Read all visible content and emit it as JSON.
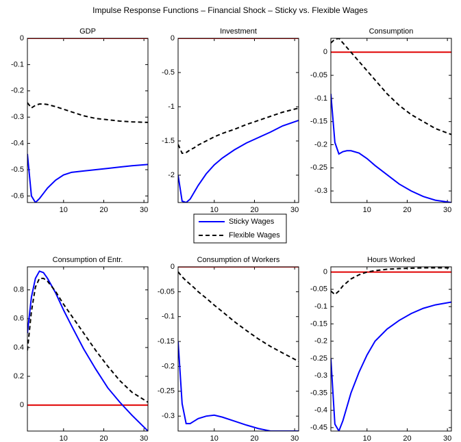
{
  "title": "Impulse Response Functions –  Financial Shock – Sticky vs. Flexible Wages",
  "chart_data": [
    {
      "type": "line",
      "title": "GDP",
      "x": [
        1,
        2,
        3,
        4,
        5,
        6,
        8,
        10,
        12,
        15,
        18,
        21,
        24,
        27,
        31
      ],
      "xlim": [
        1,
        31
      ],
      "xticks": [
        10,
        20,
        30
      ],
      "ylim": [
        -0.625,
        0
      ],
      "yticks": [
        -0.6,
        -0.5,
        -0.4,
        -0.3,
        -0.2,
        -0.1,
        0
      ],
      "hline": {
        "value": 0,
        "color": "#e00000"
      },
      "series": [
        {
          "name": "Sticky Wages",
          "color": "#0000ff",
          "linestyle": "solid",
          "values": [
            -0.44,
            -0.6,
            -0.625,
            -0.61,
            -0.59,
            -0.57,
            -0.54,
            -0.52,
            -0.51,
            -0.505,
            -0.5,
            -0.495,
            -0.49,
            -0.485,
            -0.48
          ]
        },
        {
          "name": "Flexible Wages",
          "color": "#000000",
          "linestyle": "dashed",
          "values": [
            -0.245,
            -0.265,
            -0.255,
            -0.25,
            -0.25,
            -0.252,
            -0.26,
            -0.27,
            -0.28,
            -0.295,
            -0.305,
            -0.31,
            -0.315,
            -0.318,
            -0.32
          ]
        }
      ]
    },
    {
      "type": "line",
      "title": "Investment",
      "x": [
        1,
        2,
        3,
        4,
        5,
        6,
        8,
        10,
        12,
        15,
        18,
        21,
        24,
        27,
        31
      ],
      "xlim": [
        1,
        31
      ],
      "xticks": [
        10,
        20,
        30
      ],
      "ylim": [
        -2.4,
        0
      ],
      "yticks": [
        -2,
        -1.5,
        -1,
        -0.5,
        0
      ],
      "hline": {
        "value": 0,
        "color": "#e00000"
      },
      "series": [
        {
          "name": "Sticky Wages",
          "color": "#0000ff",
          "linestyle": "solid",
          "values": [
            -2.0,
            -2.38,
            -2.4,
            -2.35,
            -2.25,
            -2.15,
            -1.98,
            -1.85,
            -1.75,
            -1.63,
            -1.53,
            -1.45,
            -1.37,
            -1.28,
            -1.2
          ]
        },
        {
          "name": "Flexible Wages",
          "color": "#000000",
          "linestyle": "dashed",
          "values": [
            -1.55,
            -1.68,
            -1.67,
            -1.63,
            -1.6,
            -1.56,
            -1.5,
            -1.44,
            -1.39,
            -1.33,
            -1.26,
            -1.2,
            -1.14,
            -1.08,
            -1.02
          ]
        }
      ]
    },
    {
      "type": "line",
      "title": "Consumption",
      "x": [
        1,
        2,
        3,
        4,
        5,
        6,
        8,
        10,
        12,
        15,
        18,
        21,
        24,
        27,
        31
      ],
      "xlim": [
        1,
        31
      ],
      "xticks": [
        10,
        20,
        30
      ],
      "ylim": [
        -0.325,
        0.03
      ],
      "yticks": [
        -0.3,
        -0.25,
        -0.2,
        -0.15,
        -0.1,
        -0.05,
        0
      ],
      "hline": {
        "value": 0,
        "color": "#e00000"
      },
      "series": [
        {
          "name": "Sticky Wages",
          "color": "#0000ff",
          "linestyle": "solid",
          "values": [
            -0.09,
            -0.195,
            -0.22,
            -0.215,
            -0.213,
            -0.213,
            -0.218,
            -0.23,
            -0.245,
            -0.265,
            -0.285,
            -0.3,
            -0.312,
            -0.32,
            -0.325
          ]
        },
        {
          "name": "Flexible Wages",
          "color": "#000000",
          "linestyle": "dashed",
          "values": [
            0.02,
            0.028,
            0.03,
            0.02,
            0.01,
            0,
            -0.02,
            -0.04,
            -0.06,
            -0.09,
            -0.115,
            -0.135,
            -0.15,
            -0.165,
            -0.178
          ]
        }
      ]
    },
    {
      "type": "line",
      "title": "Consumption of Entr.",
      "x": [
        1,
        2,
        3,
        4,
        5,
        6,
        8,
        10,
        12,
        15,
        18,
        21,
        24,
        27,
        31
      ],
      "xlim": [
        1,
        31
      ],
      "xticks": [
        10,
        20,
        30
      ],
      "ylim": [
        -0.18,
        0.96
      ],
      "yticks": [
        0,
        0.2,
        0.4,
        0.6,
        0.8
      ],
      "hline": {
        "value": 0,
        "color": "#e00000"
      },
      "series": [
        {
          "name": "Sticky Wages",
          "color": "#0000ff",
          "linestyle": "solid",
          "values": [
            0.5,
            0.75,
            0.88,
            0.93,
            0.92,
            0.88,
            0.78,
            0.66,
            0.55,
            0.39,
            0.25,
            0.12,
            0.02,
            -0.07,
            -0.18
          ]
        },
        {
          "name": "Flexible Wages",
          "color": "#000000",
          "linestyle": "dashed",
          "values": [
            0.38,
            0.65,
            0.82,
            0.88,
            0.88,
            0.86,
            0.79,
            0.7,
            0.62,
            0.5,
            0.38,
            0.27,
            0.17,
            0.09,
            0.02
          ]
        }
      ]
    },
    {
      "type": "line",
      "title": "Consumption of Workers",
      "x": [
        1,
        2,
        3,
        4,
        5,
        6,
        8,
        10,
        12,
        15,
        18,
        21,
        24,
        27,
        31
      ],
      "xlim": [
        1,
        31
      ],
      "xticks": [
        10,
        20,
        30
      ],
      "ylim": [
        -0.33,
        0
      ],
      "yticks": [
        -0.3,
        -0.25,
        -0.2,
        -0.15,
        -0.1,
        -0.05,
        0
      ],
      "hline": {
        "value": 0,
        "color": "#e00000"
      },
      "series": [
        {
          "name": "Sticky Wages",
          "color": "#0000ff",
          "linestyle": "solid",
          "values": [
            -0.15,
            -0.275,
            -0.315,
            -0.315,
            -0.31,
            -0.305,
            -0.3,
            -0.298,
            -0.302,
            -0.31,
            -0.318,
            -0.325,
            -0.33,
            -0.33,
            -0.33
          ]
        },
        {
          "name": "Flexible Wages",
          "color": "#000000",
          "linestyle": "dashed",
          "values": [
            -0.01,
            -0.02,
            -0.028,
            -0.035,
            -0.042,
            -0.05,
            -0.063,
            -0.077,
            -0.09,
            -0.11,
            -0.128,
            -0.145,
            -0.16,
            -0.173,
            -0.19
          ]
        }
      ]
    },
    {
      "type": "line",
      "title": "Hours Worked",
      "x": [
        1,
        2,
        3,
        4,
        5,
        6,
        8,
        10,
        12,
        15,
        18,
        21,
        24,
        27,
        31
      ],
      "xlim": [
        1,
        31
      ],
      "xticks": [
        10,
        20,
        30
      ],
      "ylim": [
        -0.46,
        0.015
      ],
      "yticks": [
        -0.45,
        -0.4,
        -0.35,
        -0.3,
        -0.25,
        -0.2,
        -0.15,
        -0.1,
        -0.05,
        0
      ],
      "hline": {
        "value": 0,
        "color": "#e00000"
      },
      "series": [
        {
          "name": "Sticky Wages",
          "color": "#0000ff",
          "linestyle": "solid",
          "values": [
            -0.25,
            -0.44,
            -0.46,
            -0.43,
            -0.39,
            -0.35,
            -0.29,
            -0.24,
            -0.2,
            -0.165,
            -0.14,
            -0.12,
            -0.105,
            -0.095,
            -0.087
          ]
        },
        {
          "name": "Flexible Wages",
          "color": "#000000",
          "linestyle": "dashed",
          "values": [
            -0.055,
            -0.065,
            -0.055,
            -0.04,
            -0.03,
            -0.02,
            -0.008,
            0,
            0.004,
            0.008,
            0.01,
            0.011,
            0.012,
            0.012,
            0.012
          ]
        }
      ]
    }
  ]
}
